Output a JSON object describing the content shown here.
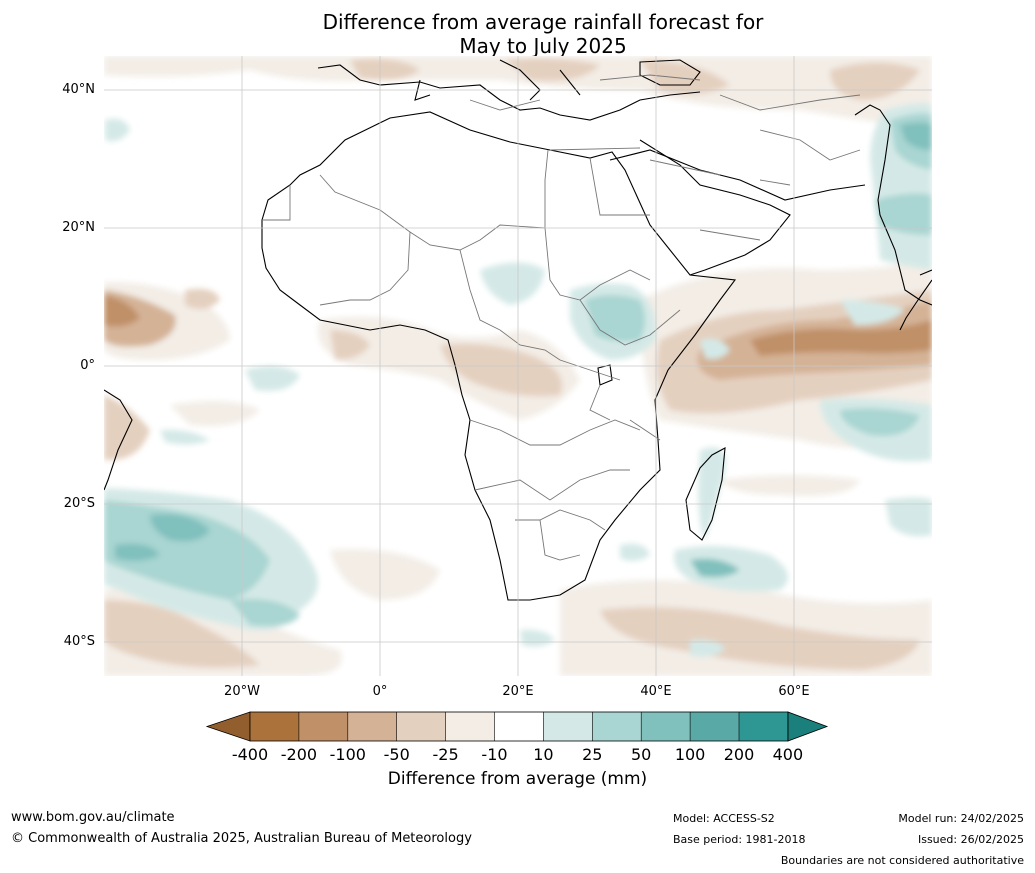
{
  "title": {
    "line1": "Difference from average rainfall forecast for",
    "line2": "May to July 2025"
  },
  "map": {
    "lat_labels": [
      "40°N",
      "20°N",
      "0°",
      "20°S",
      "40°S"
    ],
    "lon_labels": [
      "20°W",
      "0°",
      "20°E",
      "40°E",
      "60°E"
    ],
    "lat_values": [
      40,
      20,
      0,
      -20,
      -40
    ],
    "lon_values": [
      -20,
      0,
      20,
      40,
      60
    ],
    "extent": {
      "lon": [
        -40,
        80
      ],
      "lat": [
        -45,
        45
      ]
    }
  },
  "colorbar": {
    "labels": [
      "-400",
      "-200",
      "-100",
      "-50",
      "-25",
      "-10",
      "10",
      "25",
      "50",
      "100",
      "200",
      "400"
    ],
    "colors": [
      "#ab723c",
      "#c09068",
      "#d4b296",
      "#e4d0bf",
      "#f3ede6",
      "#ffffff",
      "#d4e9e7",
      "#a9d5d2",
      "#80c0bd",
      "#59aaa7",
      "#2e9693",
      "#1b7f7b"
    ],
    "low_extend_color": "#935e2e",
    "high_extend_color": "#1b7f7b",
    "title": "Difference from average (mm)"
  },
  "footer": {
    "website": "www.bom.gov.au/climate",
    "copyright": "© Commonwealth of Australia 2025, Australian Bureau of Meteorology",
    "model": "Model: ACCESS-S2",
    "base_period": "Base period: 1981-2018",
    "model_run": "Model run: 24/02/2025",
    "issued": "Issued: 26/02/2025",
    "boundaries": "Boundaries are not considered authoritative"
  }
}
